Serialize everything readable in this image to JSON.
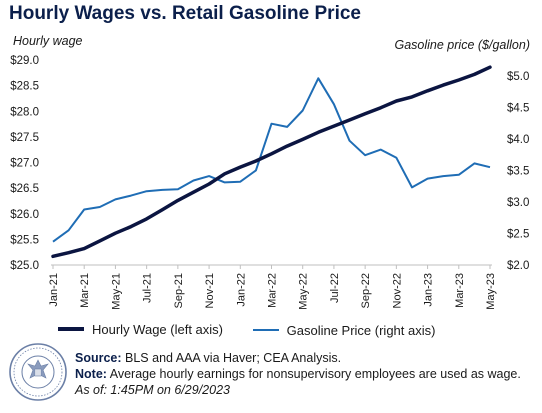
{
  "title": "Hourly Wages vs. Retail Gasoline Price",
  "left_axis_title": "Hourly wage",
  "right_axis_title": "Gasoline price ($/gallon)",
  "legend": {
    "wage": "Hourly Wage (left axis)",
    "gas": "Gasoline Price (right axis)"
  },
  "footer": {
    "source_label": "Source:",
    "source_text": " BLS and AAA via Haver; CEA Analysis.",
    "note_label": "Note:",
    "note_text": " Average hourly earnings for nonsupervisory employees are used as wage.",
    "asof_text": "As of: 1:45PM on 6/29/2023"
  },
  "colors": {
    "wage": "#0b1541",
    "gas": "#1f6db5",
    "title": "#0b1f4b",
    "seal": "#6b7fa6"
  },
  "seal_icon": "executive-office-seal",
  "chart_data": {
    "type": "line",
    "title": "Hourly Wages vs. Retail Gasoline Price",
    "x": [
      "Jan-21",
      "Feb-21",
      "Mar-21",
      "Apr-21",
      "May-21",
      "Jun-21",
      "Jul-21",
      "Aug-21",
      "Sep-21",
      "Oct-21",
      "Nov-21",
      "Dec-21",
      "Jan-22",
      "Feb-22",
      "Mar-22",
      "Apr-22",
      "May-22",
      "Jun-22",
      "Jul-22",
      "Aug-22",
      "Sep-22",
      "Oct-22",
      "Nov-22",
      "Dec-22",
      "Jan-23",
      "Feb-23",
      "Mar-23",
      "Apr-23",
      "May-23"
    ],
    "x_tick_labels": [
      "Jan-21",
      "Mar-21",
      "May-21",
      "Jul-21",
      "Sep-21",
      "Nov-21",
      "Jan-22",
      "Mar-22",
      "May-22",
      "Jul-22",
      "Sep-22",
      "Nov-22",
      "Jan-23",
      "Mar-23",
      "May-23"
    ],
    "series": [
      {
        "name": "Hourly Wage (left axis)",
        "axis": "left",
        "values": [
          25.17,
          25.24,
          25.32,
          25.47,
          25.62,
          25.75,
          25.9,
          26.08,
          26.26,
          26.42,
          26.58,
          26.78,
          26.91,
          27.03,
          27.17,
          27.32,
          27.45,
          27.59,
          27.71,
          27.83,
          27.95,
          28.07,
          28.2,
          28.28,
          28.4,
          28.51,
          28.61,
          28.72,
          28.86
        ]
      },
      {
        "name": "Gasoline Price (right axis)",
        "axis": "right",
        "values": [
          2.37,
          2.55,
          2.88,
          2.92,
          3.04,
          3.1,
          3.17,
          3.19,
          3.2,
          3.34,
          3.41,
          3.31,
          3.32,
          3.5,
          4.24,
          4.19,
          4.45,
          4.96,
          4.55,
          3.97,
          3.74,
          3.83,
          3.7,
          3.23,
          3.37,
          3.41,
          3.43,
          3.61,
          3.55
        ]
      }
    ],
    "left_axis": {
      "ylim": [
        25.0,
        29.0
      ],
      "ticks": [
        "$25.0",
        "$25.5",
        "$26.0",
        "$26.5",
        "$27.0",
        "$27.5",
        "$28.0",
        "$28.5",
        "$29.0"
      ]
    },
    "right_axis": {
      "ylim": [
        2.0,
        5.25
      ],
      "ticks": [
        "$2.0",
        "$2.5",
        "$3.0",
        "$3.5",
        "$4.0",
        "$4.5",
        "$5.0"
      ]
    },
    "grid": false,
    "legend_position": "bottom"
  }
}
